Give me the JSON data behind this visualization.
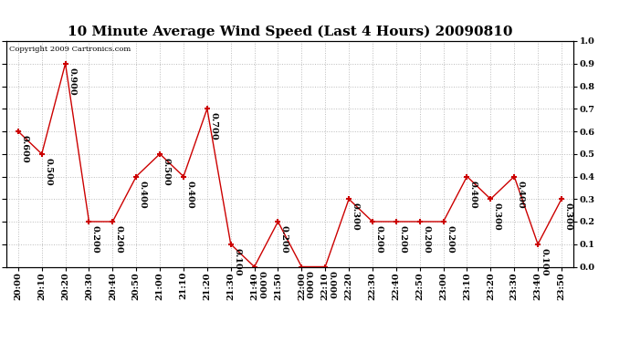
{
  "title": "10 Minute Average Wind Speed (Last 4 Hours) 20090810",
  "copyright": "Copyright 2009 Cartronics.com",
  "x_labels": [
    "20:00",
    "20:10",
    "20:20",
    "20:30",
    "20:40",
    "20:50",
    "21:00",
    "21:10",
    "21:20",
    "21:30",
    "21:40",
    "21:50",
    "22:00",
    "22:10",
    "22:20",
    "22:30",
    "22:40",
    "22:50",
    "23:00",
    "23:10",
    "23:20",
    "23:30",
    "23:40",
    "23:50"
  ],
  "y_values": [
    0.6,
    0.5,
    0.9,
    0.2,
    0.2,
    0.4,
    0.5,
    0.4,
    0.7,
    0.1,
    0.0,
    0.2,
    0.0,
    0.0,
    0.3,
    0.2,
    0.2,
    0.2,
    0.2,
    0.4,
    0.3,
    0.4,
    0.1,
    0.3
  ],
  "line_color": "#cc0000",
  "marker_color": "#cc0000",
  "bg_color": "#ffffff",
  "grid_color": "#bbbbbb",
  "ylim": [
    0.0,
    1.0
  ],
  "title_fontsize": 11,
  "tick_fontsize": 7,
  "annotation_fontsize": 7,
  "copyright_fontsize": 6
}
